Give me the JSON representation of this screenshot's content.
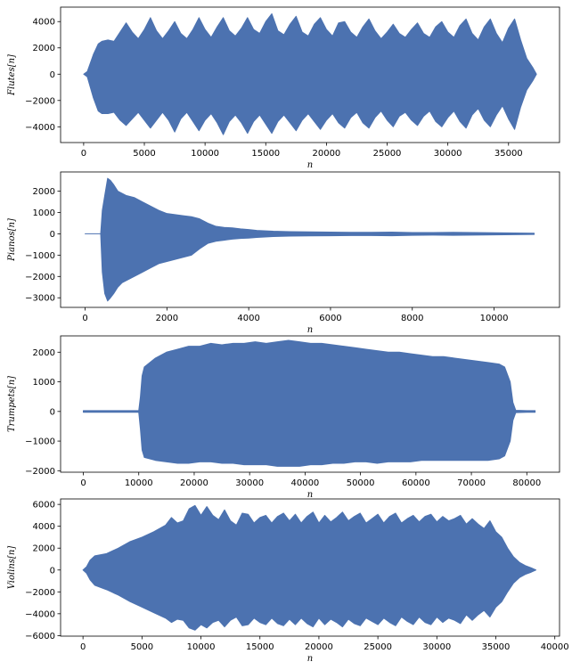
{
  "chart_data": [
    {
      "type": "line",
      "xlabel": "n",
      "ylabel": "Flutes[n]",
      "xlim": [
        -1900,
        39200
      ],
      "ylim": [
        -5200,
        5100
      ],
      "xticks": [
        0,
        5000,
        10000,
        15000,
        20000,
        25000,
        30000,
        35000
      ],
      "yticks": [
        -4000,
        -2000,
        0,
        2000,
        4000
      ],
      "color": "#4c72b0",
      "envelope": {
        "x": [
          0,
          300,
          800,
          1200,
          1500,
          2000,
          2500,
          3000,
          3500,
          4000,
          4500,
          5000,
          5500,
          6000,
          6500,
          7000,
          7500,
          8000,
          8500,
          9000,
          9500,
          10000,
          10500,
          11000,
          11500,
          12000,
          12500,
          13000,
          13500,
          14000,
          14500,
          15000,
          15500,
          16000,
          16500,
          17000,
          17500,
          18000,
          18500,
          19000,
          19500,
          20000,
          20500,
          21000,
          21500,
          22000,
          22500,
          23000,
          23500,
          24000,
          24500,
          25000,
          25500,
          26000,
          26500,
          27000,
          27500,
          28000,
          28500,
          29000,
          29500,
          30000,
          30500,
          31000,
          31500,
          32000,
          32500,
          33000,
          33500,
          34000,
          34500,
          35000,
          35500,
          36000,
          36500,
          37000,
          37300
        ],
        "upper": [
          0,
          200,
          1500,
          2300,
          2500,
          2600,
          2500,
          3200,
          3900,
          3200,
          2700,
          3400,
          4300,
          3300,
          2700,
          3300,
          4000,
          3100,
          2700,
          3400,
          4300,
          3400,
          2800,
          3600,
          4300,
          3300,
          2900,
          3500,
          4300,
          3400,
          3100,
          4000,
          4600,
          3300,
          3000,
          3800,
          4400,
          3200,
          2900,
          3800,
          4300,
          3400,
          2900,
          3900,
          4000,
          3200,
          2800,
          3600,
          4200,
          3300,
          2700,
          3200,
          3800,
          3100,
          2800,
          3400,
          3900,
          3100,
          2800,
          3600,
          4000,
          3200,
          2800,
          3700,
          4200,
          3100,
          2600,
          3600,
          4200,
          3100,
          2400,
          3500,
          4200,
          2600,
          1200,
          500,
          0
        ],
        "lower": [
          0,
          -200,
          -1800,
          -2800,
          -3000,
          -3000,
          -2900,
          -3500,
          -3900,
          -3400,
          -2900,
          -3500,
          -4100,
          -3500,
          -2900,
          -3500,
          -4400,
          -3400,
          -2900,
          -3600,
          -4300,
          -3500,
          -3000,
          -3700,
          -4600,
          -3600,
          -3100,
          -3700,
          -4500,
          -3600,
          -3100,
          -3800,
          -4500,
          -3600,
          -3100,
          -3700,
          -4300,
          -3500,
          -3000,
          -3600,
          -4200,
          -3500,
          -3000,
          -3700,
          -4100,
          -3300,
          -2900,
          -3700,
          -4100,
          -3300,
          -2800,
          -3500,
          -4000,
          -3200,
          -2900,
          -3500,
          -3900,
          -3200,
          -2800,
          -3600,
          -4000,
          -3300,
          -2800,
          -3600,
          -4100,
          -3100,
          -2600,
          -3500,
          -4000,
          -3100,
          -2400,
          -3400,
          -4200,
          -2500,
          -1200,
          -500,
          0
        ]
      }
    },
    {
      "type": "line",
      "xlabel": "n",
      "ylabel": "Pianos[n]",
      "xlim": [
        -600,
        11600
      ],
      "ylim": [
        -3450,
        2900
      ],
      "xticks": [
        0,
        2000,
        4000,
        6000,
        8000,
        10000
      ],
      "yticks": [
        -3000,
        -2000,
        -1000,
        0,
        1000,
        2000
      ],
      "color": "#4c72b0",
      "envelope": {
        "x": [
          0,
          380,
          420,
          480,
          550,
          620,
          700,
          800,
          900,
          1000,
          1200,
          1400,
          1600,
          1800,
          2000,
          2200,
          2400,
          2600,
          2800,
          3000,
          3200,
          3400,
          3600,
          3800,
          4000,
          4200,
          4600,
          5000,
          5500,
          6000,
          6500,
          7000,
          7500,
          8000,
          8500,
          9000,
          9500,
          10000,
          10500,
          10980
        ],
        "upper": [
          0,
          0,
          1100,
          1800,
          2600,
          2500,
          2300,
          2000,
          1900,
          1800,
          1700,
          1500,
          1300,
          1100,
          950,
          900,
          850,
          800,
          700,
          500,
          350,
          300,
          280,
          230,
          200,
          160,
          120,
          100,
          90,
          80,
          70,
          70,
          80,
          60,
          60,
          70,
          60,
          50,
          40,
          30
        ],
        "lower": [
          0,
          0,
          -1800,
          -2800,
          -3150,
          -3000,
          -2800,
          -2500,
          -2300,
          -2200,
          -2000,
          -1800,
          -1600,
          -1400,
          -1300,
          -1200,
          -1100,
          -1000,
          -700,
          -450,
          -350,
          -300,
          -250,
          -220,
          -200,
          -170,
          -130,
          -110,
          -100,
          -90,
          -80,
          -80,
          -90,
          -70,
          -60,
          -70,
          -60,
          -50,
          -40,
          -30
        ]
      }
    },
    {
      "type": "line",
      "xlabel": "n",
      "ylabel": "Trumpets[n]",
      "xlim": [
        -4100,
        85900
      ],
      "ylim": [
        -2050,
        2550
      ],
      "xticks": [
        0,
        10000,
        20000,
        30000,
        40000,
        50000,
        60000,
        70000,
        80000
      ],
      "yticks": [
        -2000,
        -1000,
        0,
        1000,
        2000
      ],
      "color": "#4c72b0",
      "envelope": {
        "x": [
          0,
          5000,
          10000,
          10300,
          10600,
          11000,
          13000,
          15000,
          17000,
          19000,
          21000,
          23000,
          25000,
          27000,
          29000,
          31000,
          33000,
          35000,
          37000,
          39000,
          41000,
          43000,
          45000,
          47000,
          49000,
          51000,
          53000,
          55000,
          57000,
          59000,
          61000,
          63000,
          65000,
          67000,
          69000,
          71000,
          73000,
          75000,
          76000,
          77000,
          77500,
          78000,
          80000,
          81500
        ],
        "upper": [
          30,
          30,
          30,
          500,
          1200,
          1500,
          1800,
          2000,
          2100,
          2200,
          2200,
          2300,
          2250,
          2300,
          2300,
          2350,
          2300,
          2350,
          2400,
          2350,
          2300,
          2300,
          2250,
          2200,
          2150,
          2100,
          2050,
          2000,
          2000,
          1950,
          1900,
          1850,
          1850,
          1800,
          1750,
          1700,
          1650,
          1600,
          1500,
          1000,
          300,
          40,
          30,
          30
        ],
        "lower": [
          -30,
          -30,
          -30,
          -600,
          -1300,
          -1550,
          -1650,
          -1700,
          -1750,
          -1750,
          -1700,
          -1700,
          -1750,
          -1750,
          -1800,
          -1800,
          -1800,
          -1850,
          -1850,
          -1850,
          -1800,
          -1800,
          -1750,
          -1750,
          -1700,
          -1700,
          -1750,
          -1700,
          -1700,
          -1700,
          -1650,
          -1650,
          -1650,
          -1650,
          -1650,
          -1650,
          -1650,
          -1600,
          -1500,
          -1000,
          -300,
          -40,
          -30,
          -30
        ]
      }
    },
    {
      "type": "line",
      "xlabel": "n",
      "ylabel": "Violins[n]",
      "xlim": [
        -1900,
        40400
      ],
      "ylim": [
        -6050,
        6500
      ],
      "xticks": [
        0,
        5000,
        10000,
        15000,
        20000,
        25000,
        30000,
        35000,
        40000
      ],
      "yticks": [
        -6000,
        -4000,
        -2000,
        0,
        2000,
        4000,
        6000
      ],
      "color": "#4c72b0",
      "envelope": {
        "x": [
          0,
          300,
          600,
          1000,
          2000,
          3000,
          4000,
          5000,
          6000,
          7000,
          7500,
          8000,
          8500,
          9000,
          9500,
          10000,
          10500,
          11000,
          11500,
          12000,
          12500,
          13000,
          13500,
          14000,
          14500,
          15000,
          15500,
          16000,
          16500,
          17000,
          17500,
          18000,
          18500,
          19000,
          19500,
          20000,
          20500,
          21000,
          21500,
          22000,
          22500,
          23000,
          23500,
          24000,
          24500,
          25000,
          25500,
          26000,
          26500,
          27000,
          27500,
          28000,
          28500,
          29000,
          29500,
          30000,
          30500,
          31000,
          31500,
          32000,
          32500,
          33000,
          33500,
          34000,
          34500,
          35000,
          35500,
          36000,
          36500,
          37000,
          37500,
          38000,
          38400
        ],
        "upper": [
          0,
          300,
          900,
          1300,
          1500,
          2000,
          2600,
          3000,
          3500,
          4100,
          4800,
          4300,
          4500,
          5600,
          5900,
          5000,
          5800,
          5000,
          4600,
          5500,
          4500,
          4100,
          5200,
          5100,
          4300,
          4800,
          5000,
          4300,
          4900,
          5200,
          4500,
          5100,
          4300,
          4900,
          5300,
          4300,
          5000,
          4400,
          4800,
          5300,
          4500,
          4900,
          5200,
          4300,
          4700,
          5100,
          4300,
          4900,
          5200,
          4300,
          4700,
          5000,
          4400,
          4900,
          5100,
          4400,
          4900,
          4500,
          4700,
          5000,
          4200,
          4700,
          4200,
          3800,
          4500,
          3500,
          3000,
          2000,
          1200,
          700,
          400,
          200,
          0
        ],
        "lower": [
          0,
          -300,
          -900,
          -1400,
          -1800,
          -2300,
          -2900,
          -3400,
          -3900,
          -4400,
          -4800,
          -4500,
          -4600,
          -5300,
          -5500,
          -5000,
          -5300,
          -4800,
          -4600,
          -5200,
          -4600,
          -4300,
          -5100,
          -5000,
          -4400,
          -4800,
          -5000,
          -4400,
          -4900,
          -5100,
          -4500,
          -5000,
          -4400,
          -4900,
          -5200,
          -4400,
          -5000,
          -4500,
          -4800,
          -5200,
          -4500,
          -4900,
          -5100,
          -4400,
          -4700,
          -5000,
          -4400,
          -4800,
          -5100,
          -4300,
          -4700,
          -5000,
          -4300,
          -4800,
          -5000,
          -4300,
          -4800,
          -4400,
          -4600,
          -4900,
          -4100,
          -4600,
          -4100,
          -3700,
          -4300,
          -3400,
          -2900,
          -2000,
          -1200,
          -700,
          -400,
          -200,
          0
        ]
      }
    }
  ]
}
